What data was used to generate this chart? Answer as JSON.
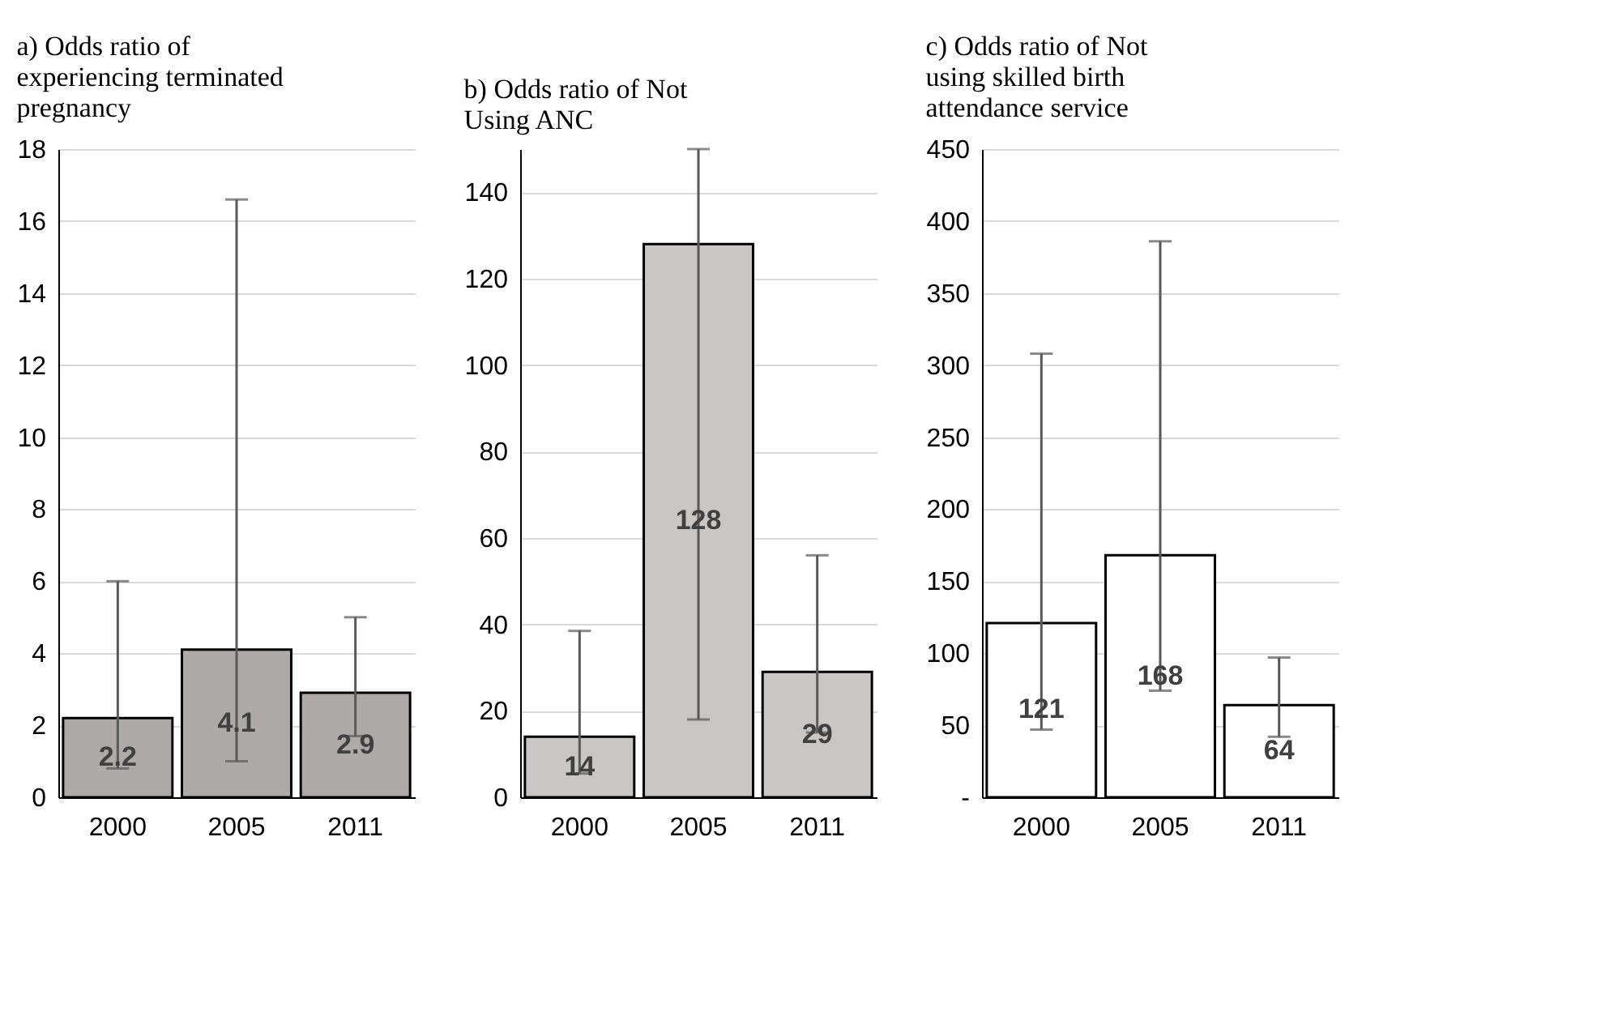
{
  "chart_data": [
    {
      "type": "bar",
      "title": "a) Odds ratio of experiencing terminated pregnancy",
      "categories": [
        "2000",
        "2005",
        "2011"
      ],
      "values": [
        2.2,
        4.1,
        2.9
      ],
      "color": "#aeaaaa",
      "errors": [
        [
          0.8,
          6.0
        ],
        [
          1.0,
          16.6
        ],
        [
          1.7,
          5.0
        ]
      ],
      "ylim": [
        0,
        18
      ],
      "yticks": [
        0,
        2,
        4,
        6,
        8,
        10,
        12,
        14,
        16,
        18
      ],
      "grid": "y",
      "data_labels": true
    },
    {
      "type": "bar",
      "title": "b) Odds ratio of Not Using ANC",
      "categories": [
        "2000",
        "2005",
        "2011"
      ],
      "values": [
        14,
        128,
        29
      ],
      "color": "#c9c7c5",
      "errors": [
        [
          5.5,
          38.5
        ],
        [
          18,
          150
        ],
        [
          15,
          56
        ]
      ],
      "ylim": [
        0,
        150
      ],
      "yticks": [
        0,
        20,
        40,
        60,
        80,
        100,
        120,
        140
      ],
      "grid": "y",
      "data_labels": true
    },
    {
      "type": "bar",
      "title": "c) Odds ratio of Not using skilled birth attendance service",
      "categories": [
        "2000",
        "2005",
        "2011"
      ],
      "values": [
        121,
        168,
        64
      ],
      "color": "#ffffff",
      "errors": [
        [
          47,
          308
        ],
        [
          74,
          386
        ],
        [
          42,
          97
        ]
      ],
      "ylim": [
        0,
        450
      ],
      "yticks": [
        {
          "value": 0,
          "label": "-"
        },
        50,
        100,
        150,
        200,
        250,
        300,
        350,
        400,
        450
      ],
      "grid": "y",
      "data_labels": true
    }
  ]
}
